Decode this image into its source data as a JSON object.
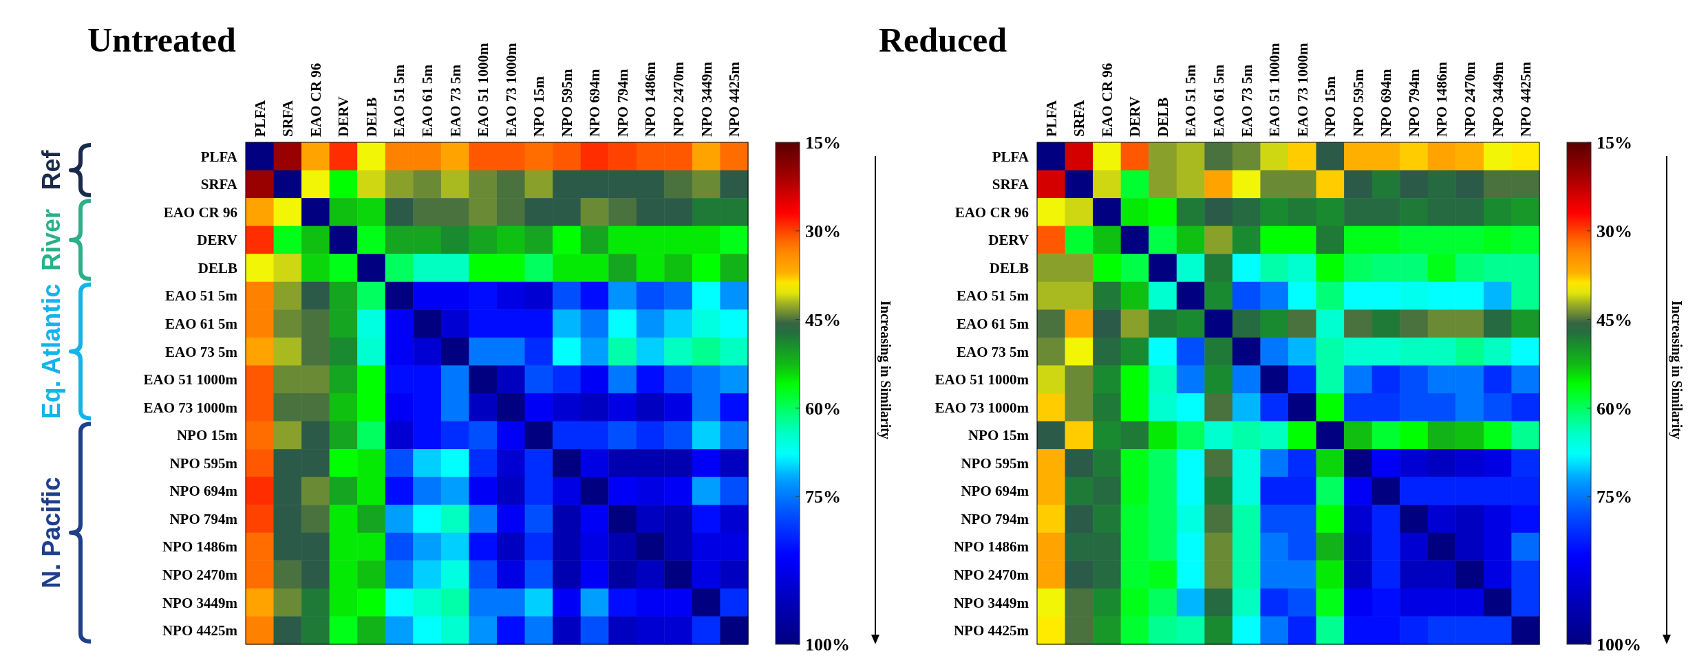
{
  "chart_data": [
    {
      "type": "heatmap",
      "title": "Untreated",
      "clabel": "Increasing in Similarity",
      "clim": [
        15,
        100
      ],
      "cticks": [
        {
          "value": 15,
          "label": "15%"
        },
        {
          "value": 30,
          "label": "30%"
        },
        {
          "value": 45,
          "label": "45%"
        },
        {
          "value": 60,
          "label": "60%"
        },
        {
          "value": 75,
          "label": "75%"
        },
        {
          "value": 100,
          "label": "100%"
        }
      ],
      "annotations": [
        "Ref",
        "River",
        "Eq. Atlantic",
        "N. Pacific"
      ],
      "categories": [
        "PLFA",
        "SRFA",
        "EAO CR 96",
        "DERV",
        "DELB",
        "EAO 51 5m",
        "EAO 61 5m",
        "EAO 73 5m",
        "EAO 51 1000m",
        "EAO 73 1000m",
        "NPO 15m",
        "NPO 595m",
        "NPO 694m",
        "NPO 794m",
        "NPO 1486m",
        "NPO 2470m",
        "NPO 3449m",
        "NPO 4425m"
      ],
      "y_categories": [
        "PLFA",
        "SRFA",
        "EAO CR 96",
        "DERV",
        "DELB",
        "EAO 51 5m",
        "EAO 61 5m",
        "EAO 73 5m",
        "EAO 51 1000m",
        "EAO 73 1000m",
        "NPO 15m",
        "NPO 595m",
        "NPO 694m",
        "NPO 794m",
        "NPO 1486m",
        "NPO 2470m",
        "NPO 3449m",
        "NPO 4425m"
      ],
      "cells": [
        [
          100,
          20,
          36,
          29,
          40,
          33,
          33,
          36,
          31,
          31,
          32,
          31,
          29,
          30,
          31,
          31,
          36,
          32
        ],
        [
          20,
          100,
          40,
          56,
          41,
          43,
          44,
          42,
          44,
          45,
          43,
          46,
          46,
          46,
          46,
          45,
          44,
          46
        ],
        [
          36,
          40,
          100,
          53,
          54,
          46,
          45,
          45,
          44,
          45,
          46,
          46,
          44,
          45,
          46,
          46,
          48,
          48
        ],
        [
          29,
          57,
          53,
          100,
          57,
          51,
          51,
          49,
          51,
          53,
          51,
          56,
          51,
          55,
          55,
          55,
          55,
          57
        ],
        [
          40,
          41,
          54,
          57,
          100,
          60,
          64,
          64,
          56,
          56,
          60,
          55,
          55,
          51,
          55,
          53,
          56,
          52
        ],
        [
          33,
          43,
          46,
          51,
          60,
          100,
          86,
          86,
          84,
          88,
          90,
          78,
          84,
          73,
          78,
          76,
          68,
          73
        ],
        [
          33,
          44,
          45,
          51,
          66,
          86,
          100,
          90,
          84,
          84,
          84,
          71,
          75,
          68,
          73,
          70,
          66,
          68
        ],
        [
          36,
          42,
          45,
          49,
          65,
          86,
          90,
          100,
          75,
          75,
          81,
          68,
          72,
          63,
          70,
          64,
          62,
          64
        ],
        [
          31,
          44,
          44,
          51,
          56,
          84,
          84,
          75,
          100,
          92,
          78,
          81,
          86,
          75,
          84,
          78,
          75,
          73
        ],
        [
          31,
          45,
          45,
          53,
          56,
          86,
          84,
          75,
          92,
          100,
          86,
          90,
          92,
          88,
          92,
          88,
          75,
          84
        ],
        [
          32,
          43,
          46,
          51,
          60,
          90,
          84,
          81,
          78,
          86,
          100,
          81,
          81,
          78,
          81,
          78,
          70,
          75
        ],
        [
          31,
          46,
          46,
          56,
          55,
          78,
          70,
          68,
          81,
          90,
          81,
          100,
          88,
          94,
          94,
          94,
          86,
          92
        ],
        [
          29,
          46,
          44,
          51,
          55,
          84,
          75,
          72,
          86,
          92,
          81,
          88,
          100,
          86,
          88,
          86,
          72,
          78
        ],
        [
          30,
          46,
          45,
          55,
          51,
          72,
          68,
          64,
          75,
          86,
          78,
          94,
          86,
          100,
          92,
          94,
          84,
          90
        ],
        [
          32,
          46,
          46,
          55,
          55,
          78,
          72,
          70,
          84,
          92,
          81,
          94,
          88,
          94,
          100,
          94,
          88,
          88
        ],
        [
          32,
          45,
          46,
          55,
          53,
          75,
          70,
          66,
          78,
          88,
          78,
          94,
          86,
          96,
          92,
          100,
          88,
          92
        ],
        [
          36,
          44,
          48,
          55,
          56,
          68,
          65,
          63,
          75,
          75,
          70,
          86,
          72,
          84,
          86,
          86,
          100,
          81
        ],
        [
          33,
          46,
          48,
          57,
          52,
          72,
          68,
          65,
          73,
          84,
          75,
          92,
          78,
          92,
          90,
          90,
          81,
          100
        ]
      ]
    },
    {
      "type": "heatmap",
      "title": "Reduced",
      "clabel": "Increasing in Similarity",
      "clim": [
        15,
        100
      ],
      "cticks": [
        {
          "value": 15,
          "label": "15%"
        },
        {
          "value": 30,
          "label": "30%"
        },
        {
          "value": 45,
          "label": "45%"
        },
        {
          "value": 60,
          "label": "60%"
        },
        {
          "value": 75,
          "label": "75%"
        },
        {
          "value": 100,
          "label": "100%"
        }
      ],
      "categories": [
        "PLFA",
        "SRFA",
        "EAO CR 96",
        "DERV",
        "DELB",
        "EAO 51 5m",
        "EAO 61 5m",
        "EAO 73 5m",
        "EAO 51 1000m",
        "EAO 73 1000m",
        "NPO 15m",
        "NPO 595m",
        "NPO 694m",
        "NPO 794m",
        "NPO 1486m",
        "NPO 2470m",
        "NPO 3449m",
        "NPO 4425m"
      ],
      "y_categories": [
        "PLFA",
        "SRFA",
        "EAO CR 96",
        "DERV",
        "DELB",
        "EAO 51 5m",
        "EAO 61 5m",
        "EAO 73 5m",
        "EAO 51 1000m",
        "EAO 73 1000m",
        "NPO 15m",
        "NPO 595m",
        "NPO 694m",
        "NPO 794m",
        "NPO 1486m",
        "NPO 2470m",
        "NPO 3449m",
        "NPO 4425m"
      ],
      "cells": [
        [
          100,
          24,
          40,
          31,
          43,
          42,
          45,
          44,
          41,
          38,
          46,
          37,
          37,
          38,
          36,
          37,
          40,
          39
        ],
        [
          24,
          100,
          41,
          58,
          43,
          42,
          36,
          40,
          44,
          44,
          38,
          46,
          48,
          46,
          47,
          46,
          45,
          45
        ],
        [
          40,
          41,
          100,
          55,
          56,
          48,
          46,
          47,
          49,
          48,
          49,
          47,
          47,
          48,
          47,
          47,
          49,
          50
        ],
        [
          31,
          58,
          53,
          100,
          59,
          53,
          43,
          49,
          56,
          56,
          48,
          57,
          57,
          58,
          58,
          58,
          57,
          58
        ],
        [
          43,
          43,
          56,
          59,
          100,
          65,
          48,
          68,
          63,
          65,
          56,
          60,
          61,
          61,
          57,
          61,
          62,
          62
        ],
        [
          42,
          42,
          48,
          53,
          65,
          100,
          49,
          78,
          75,
          68,
          61,
          68,
          68,
          67,
          68,
          68,
          71,
          62
        ],
        [
          45,
          36,
          46,
          43,
          48,
          49,
          100,
          47,
          49,
          45,
          65,
          45,
          48,
          45,
          44,
          44,
          47,
          50
        ],
        [
          44,
          40,
          47,
          49,
          68,
          78,
          48,
          100,
          75,
          71,
          63,
          65,
          65,
          64,
          64,
          62,
          64,
          68
        ],
        [
          41,
          44,
          49,
          56,
          64,
          75,
          49,
          75,
          100,
          81,
          63,
          75,
          81,
          78,
          75,
          75,
          81,
          75
        ],
        [
          38,
          44,
          48,
          56,
          65,
          68,
          45,
          71,
          81,
          100,
          56,
          80,
          80,
          78,
          78,
          75,
          78,
          81
        ],
        [
          46,
          38,
          49,
          48,
          55,
          60,
          65,
          63,
          64,
          56,
          100,
          53,
          58,
          56,
          52,
          53,
          57,
          62
        ],
        [
          37,
          46,
          48,
          57,
          60,
          68,
          45,
          66,
          75,
          81,
          54,
          100,
          86,
          90,
          92,
          90,
          88,
          81
        ],
        [
          37,
          48,
          47,
          57,
          60,
          68,
          48,
          66,
          82,
          82,
          60,
          86,
          100,
          82,
          82,
          82,
          82,
          82
        ],
        [
          38,
          46,
          48,
          58,
          60,
          66,
          45,
          63,
          78,
          78,
          56,
          90,
          82,
          100,
          90,
          92,
          88,
          84
        ],
        [
          36,
          47,
          47,
          58,
          60,
          68,
          44,
          63,
          75,
          78,
          52,
          92,
          82,
          90,
          100,
          92,
          88,
          76
        ],
        [
          36,
          46,
          47,
          58,
          57,
          68,
          44,
          63,
          75,
          75,
          55,
          92,
          82,
          92,
          92,
          100,
          88,
          80
        ],
        [
          40,
          45,
          49,
          57,
          60,
          71,
          47,
          64,
          81,
          78,
          57,
          86,
          84,
          88,
          88,
          88,
          100,
          80
        ],
        [
          39,
          45,
          50,
          58,
          62,
          63,
          49,
          68,
          75,
          82,
          62,
          84,
          84,
          82,
          80,
          80,
          80,
          100
        ]
      ]
    }
  ]
}
